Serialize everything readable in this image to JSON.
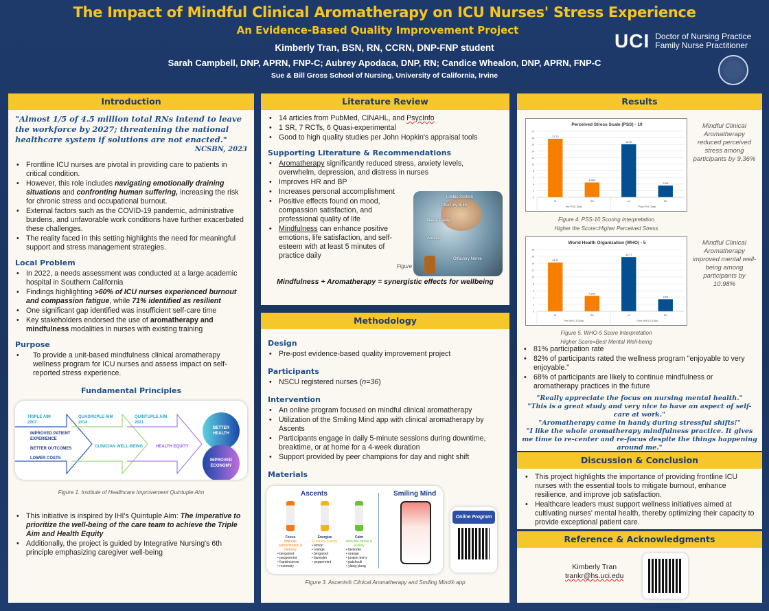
{
  "header": {
    "title": "The Impact of Mindful Clinical Aromatherapy on ICU Nurses' Stress Experience",
    "subtitle": "An Evidence-Based Quality Improvement Project",
    "author": "Kimberly Tran, BSN, RN, CCRN, DNP-FNP student",
    "advisors": "Sarah Campbell, DNP, APRN, FNP-C; Aubrey Apodaca, DNP, RN; Candice Whealon, DNP, APRN, FNP-C",
    "school": "Sue & Bill Gross School of Nursing, University of California, Irvine",
    "logo_text": "UCI",
    "program1": "Doctor of Nursing Practice",
    "program2": "Family Nurse Practitioner"
  },
  "intro": {
    "heading": "Introduction",
    "quote": "\"Almost 1/5 of 4.5 million total RNs intend to leave the workforce by 2027; threatening the national healthcare system if solutions are not enacted.\"",
    "cite": "NCSBN, 2023",
    "b1": "Frontline ICU nurses are pivotal in providing care to patients in critical condition.",
    "b2a": "However, this role includes ",
    "b2b": "navigating emotionally draining situations",
    "b2c": " and ",
    "b2d": "confronting human suffering,",
    "b2e": " increasing the risk for chronic stress and occupational burnout.",
    "b3": "External factors such as the COVID-19 pandemic, administrative burdens, and unfavorable work conditions have further exacerbated these challenges.",
    "b4": "The reality faced in this setting highlights the need for meaningful support and stress management strategies.",
    "local_heading": "Local Problem",
    "l1": "In 2022, a needs assessment was conducted at a large academic hospital in Southern California",
    "l2a": "Findings highlighting ",
    "l2b": ">60% of ICU nurses experienced burnout and compassion fatigue",
    "l2c": ", while ",
    "l2d": "71% identified as resilient",
    "l3": "One significant gap identified was insufficient self-care time",
    "l4a": "Key stakeholders endorsed the use of ",
    "l4b": "aromatherapy and mindfulness",
    "l4c": " modalities in nurses with existing training",
    "purpose_heading": "Purpose",
    "purpose": "To provide a unit-based mindfulness clinical aromatherapy wellness program for ICU nurses and assess impact on self-reported stress experience.",
    "principles_heading": "Fundamental Principles",
    "diagram": {
      "a1": "TRIPLE AIM",
      "y1": "2007",
      "a2": "QUADRUPLE AIM",
      "y2": "2014",
      "a3": "QUINTUPLE AIM",
      "y3": "2021",
      "t1": "IMPROVED PATIENT EXPERIENCE",
      "t2": "BETTER OUTCOMES",
      "t3": "LOWER COSTS",
      "t4": "CLINICIAN WELL-BEING",
      "t5": "HEALTH EQUITY",
      "c1": "BETTER HEALTH",
      "c2": "IMPROVED ECONOMY"
    },
    "fig1": "Figure 1.  Institute of Healthcare Improvement Quintuple Aim",
    "f1a": "This initiative is inspired by IHI's Quintuple Aim: ",
    "f1b": "The imperative to prioritize the well-being of the care team to achieve the Triple Aim and Health Equity",
    "f2": "Additionally, the project is guided by Integrative Nursing's 6th principle emphasizing caregiver well-being"
  },
  "lit": {
    "heading": "Literature Review",
    "b1a": "14 articles from PubMed, CINAHL, and ",
    "b1b": "PsycInfo",
    "b2": "1 SR, 7 RCTs, 6 Quasi-experimental",
    "b3": "Good to high quality studies per John Hopkin's appraisal tools",
    "sub": "Supporting Literature & Recommendations",
    "s1a": "Aromatherapy",
    "s1b": " significantly reduced stress, anxiety levels, overwhelm, depression, and distress in nurses",
    "s2": "Improves HR and BP",
    "s3": "Increases personal accomplishment",
    "s4": "Positive effects found on mood, compassion satisfaction, and professional quality of life",
    "s5a": "Mindfulness",
    "s5b": " can enhance positive emotions, life satisfaction, and self-esteem with at least 5 minutes of practice daily",
    "fig2": "Figure 2. Essential Oil Mechanism of Action",
    "img_labels": [
      "Limbic System",
      "Olfactory Bulb",
      "Nasal Cavity",
      "Aroma",
      "Olfactory Nerve"
    ],
    "synergy": "Mindfulness + Aromatherapy = synergistic effects for wellbeing"
  },
  "method": {
    "heading": "Methodology",
    "design_h": "Design",
    "design": "Pre-post evidence-based quality improvement project",
    "part_h": "Participants",
    "part_a": "NSCU registered nurses (",
    "part_b": "n=36",
    "part_c": ")",
    "int_h": "Intervention",
    "i1": "An online program focused on mindful clinical aromatherapy",
    "i2": "Utilization of the Smiling Mind app with clinical aromatherapy by Ascents",
    "i3": "Participants engage in daily 5-minute sessions during downtime, breaktime, or at home for a 4-week duration",
    "i4": "Support provided by peer champions for day and night shift",
    "mat_h": "Materials",
    "ascents": "Ascents",
    "smiling": "Smiling Mind",
    "online": "Online Program",
    "products": [
      {
        "name": "Focus",
        "desc": "Improve concentration & memory",
        "oils": [
          "bergamot",
          "peppermint",
          "frankincense",
          "rosemary"
        ],
        "color": "#f07a1a"
      },
      {
        "name": "Energize",
        "desc": "Enhance energy",
        "oils": [
          "lemon",
          "orange",
          "bergamot",
          "lavender",
          "peppermint"
        ],
        "color": "#f2b51c"
      },
      {
        "name": "Calm",
        "desc": "Alleviate stress & anxiety",
        "oils": [
          "lavender",
          "orange",
          "juniper berry",
          "patchouli",
          "ylang-ylang"
        ],
        "color": "#6cc13a"
      }
    ],
    "fig3": "Figure 3. Ascents® Clinical Aromatherapy and Smiling Mind® app"
  },
  "results": {
    "heading": "Results",
    "side1": "Mindful Clinical Aromatherapy reduced perceived stress among participants by 9.36%",
    "side2": "Mindful Clinical Aromatherapy improved mental well-being among participants by 10.98%",
    "fig4a": "Figure 4. PSS-10 Scoring Interpretation",
    "fig4b": "Higher the Score=Higher Perceived Stress",
    "fig5a": "Figure 5. WHO-5 Score Interpretation",
    "fig5b": "Higher Score=Best Mental Well-being",
    "r1": "81% participation rate",
    "r2": "82% of participants rated the wellness program \"enjoyable to very enjoyable.\"",
    "r3": "68% of participants are likely to continue mindfulness or aromatherapy practices in the future",
    "quotes": [
      "\"Really appreciate the focus on nursing mental health.\"",
      "\"This is a great study and very nice to have an aspect of self-care at work.\"",
      "\"Aromatherapy came in handy during stressful shifts!\"",
      "\"I like the whole aromatherapy mindfulness practice. It gives me time to re-center and re-focus despite the things happening around me.\""
    ]
  },
  "discussion": {
    "heading": "Discussion & Conclusion",
    "d1": "This project highlights the importance of providing frontline ICU nurses with the essential tools to mitigate burnout, enhance resilience, and improve job satisfaction.",
    "d2": "Healthcare leaders must support wellness initiatives aimed at cultivating nurses' mental health, thereby optimizing their capacity to provide exceptional patient care."
  },
  "reference": {
    "heading": "Reference & Acknowledgments",
    "name": "Kimberly Tran",
    "email": "trankr@hs.uci.edu"
  },
  "chart_data": [
    {
      "type": "bar",
      "title": "Perceived Stress Scale (PSS) - 10",
      "categories": [
        "M",
        "SD",
        "M",
        "SD"
      ],
      "groups": [
        "Pre PSS Total",
        "Post PSS Total"
      ],
      "values": [
        17.73,
        4.48,
        16.08,
        3.56
      ],
      "labels": [
        "17.73",
        "4.480",
        "16.08",
        "3.56"
      ],
      "colors": [
        "#f77f00",
        "#f77f00",
        "#034f8f",
        "#034f8f"
      ],
      "ylim": [
        0,
        20
      ],
      "yticks": [
        0,
        2,
        4,
        6,
        8,
        10,
        12,
        14,
        16,
        18,
        20
      ],
      "grid": true
    },
    {
      "type": "bar",
      "title": "World Health Organization (WHO) - 5",
      "categories": [
        "M",
        "SD",
        "M",
        "SD"
      ],
      "groups": [
        "Pre WHO-5 Total",
        "Post WHO-5 Total"
      ],
      "values": [
        14.21,
        4.506,
        15.77,
        3.53
      ],
      "labels": [
        "14.21",
        "4.506",
        "15.77",
        "3.53"
      ],
      "colors": [
        "#f77f00",
        "#f77f00",
        "#034f8f",
        "#034f8f"
      ],
      "ylim": [
        0,
        18
      ],
      "yticks": [
        0,
        2,
        4,
        6,
        8,
        10,
        12,
        14,
        16,
        18
      ],
      "grid": true
    }
  ]
}
